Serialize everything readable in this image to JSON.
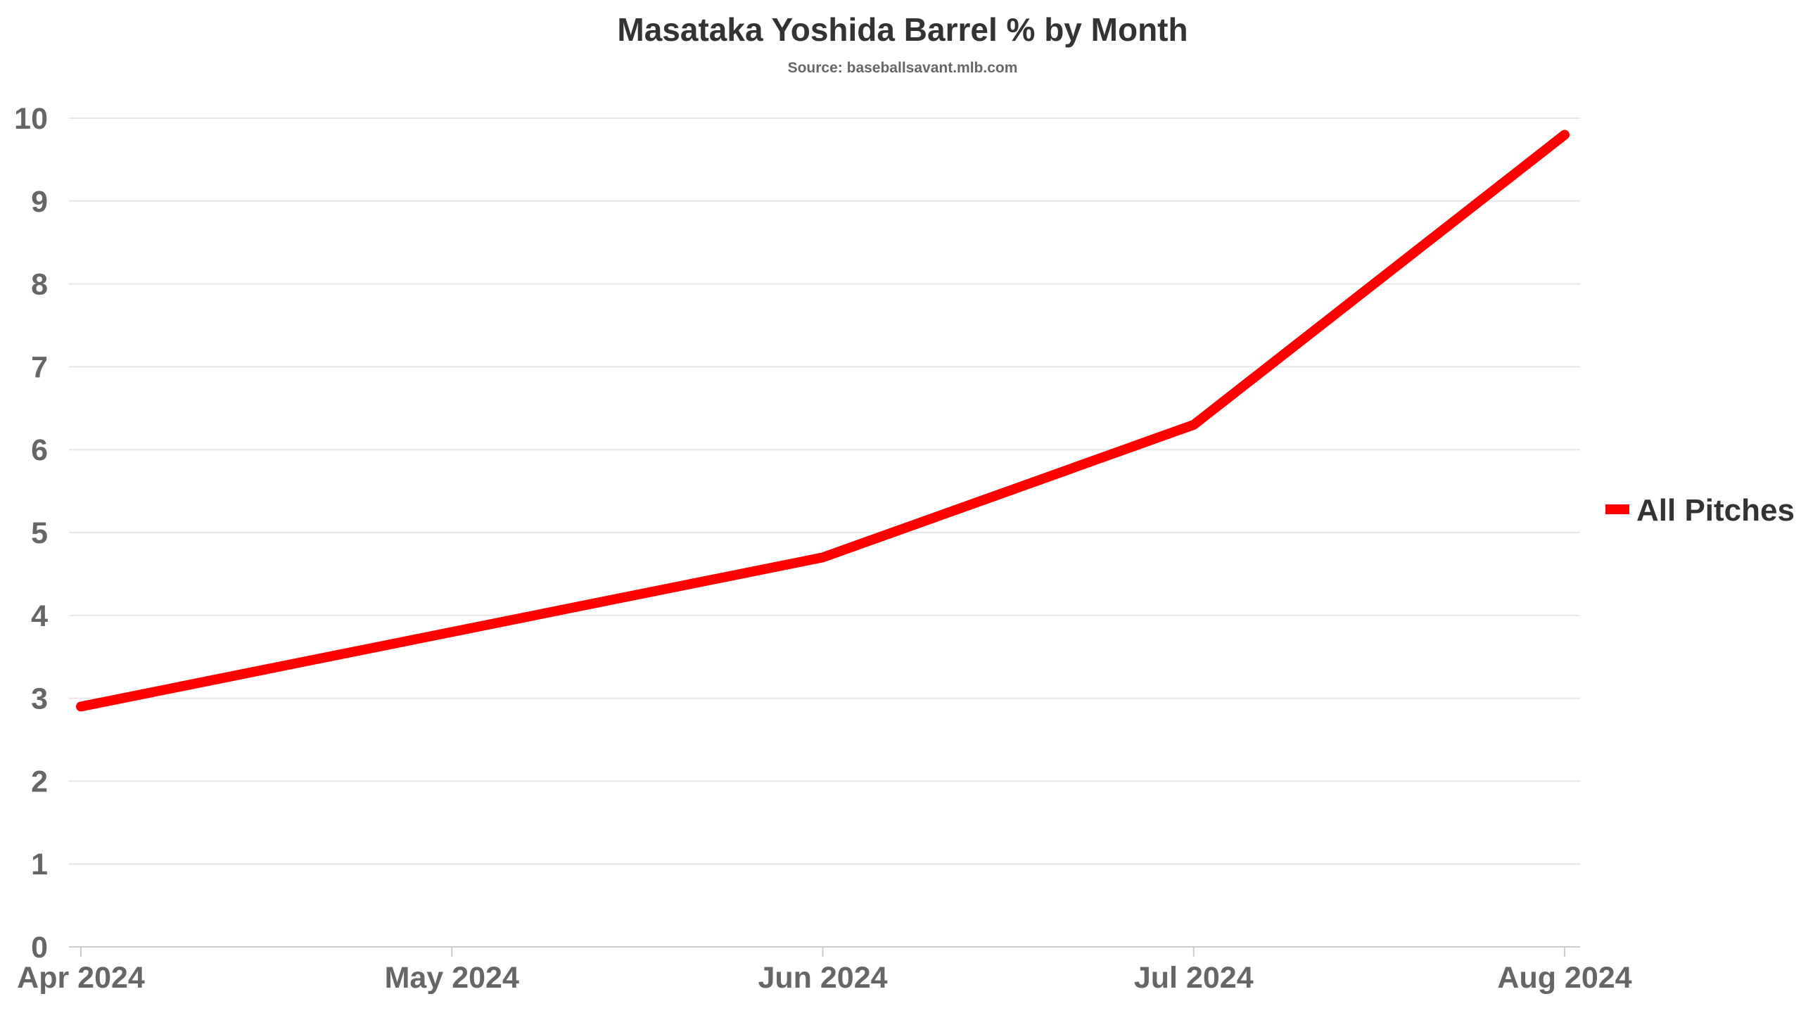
{
  "chart_data": {
    "type": "line",
    "title": "Masataka Yoshida Barrel % by Month",
    "subtitle": "Source: baseballsavant.mlb.com",
    "xlabel": "",
    "ylabel": "",
    "x": [
      "2024-04",
      "2024-05",
      "2024-06",
      "2024-07",
      "2024-08"
    ],
    "x_tick_labels": [
      "Apr 2024",
      "May 2024",
      "Jun 2024",
      "Jul 2024",
      "Aug 2024"
    ],
    "y_ticks": [
      0,
      1,
      2,
      3,
      4,
      5,
      6,
      7,
      8,
      9,
      10
    ],
    "ylim": [
      0,
      10
    ],
    "grid": true,
    "legend_position": "right",
    "series": [
      {
        "name": "All Pitches",
        "color": "#ff0000",
        "values": [
          2.9,
          3.8,
          4.7,
          6.3,
          9.8
        ]
      }
    ]
  }
}
